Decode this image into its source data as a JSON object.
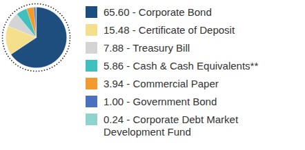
{
  "chart_data": {
    "type": "pie",
    "categories": [
      "Corporate Bond",
      "Certificate of Deposit",
      "Treasury Bill",
      "Cash & Cash Equivalents**",
      "Commercial Paper",
      "Government Bond",
      "Corporate Debt Market Development Fund"
    ],
    "values": [
      65.6,
      15.48,
      7.88,
      5.86,
      3.94,
      1.0,
      0.24
    ],
    "value_labels": [
      "65.60 - Corporate Bond",
      "15.48 - Certificate of Deposit",
      "7.88 - Treasury Bill",
      "5.86 - Cash & Cash Equivalents**",
      "3.94 - Commercial Paper",
      "1.00 - Government Bond",
      "0.24 - Corporate Debt Market Development Fund"
    ],
    "colors": [
      "#1e4e7d",
      "#f6df8c",
      "#d4d4d4",
      "#40c0bd",
      "#f29a2e",
      "#4a70c0",
      "#8fd3cf"
    ],
    "legend": "right",
    "data_labels": false
  }
}
